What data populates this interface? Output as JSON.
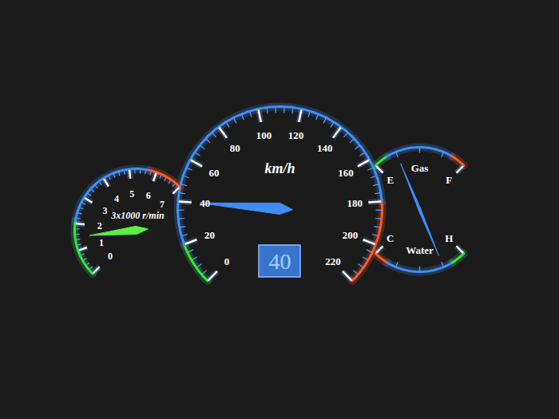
{
  "chart_data": [
    {
      "type": "gauge",
      "title": "km/h",
      "value": 40,
      "ylim": [
        0,
        220
      ],
      "yticks": [
        0,
        20,
        40,
        60,
        80,
        100,
        120,
        140,
        160,
        180,
        200,
        220
      ],
      "data_labels": true,
      "color": "#3f8ef5"
    },
    {
      "type": "gauge",
      "title": "3x1000 r/min",
      "value": 1.5,
      "ylim": [
        0,
        7
      ],
      "yticks": [
        0,
        1,
        2,
        3,
        4,
        5,
        6,
        7
      ],
      "color": "#5cf03e"
    },
    {
      "type": "gauge",
      "title": "Gas",
      "value": 0.5,
      "ylim": [
        0,
        2
      ],
      "yticks": [
        {
          "value": 0,
          "label": "E"
        },
        {
          "value": 2,
          "label": "F"
        }
      ],
      "color": "#3f8ef5"
    },
    {
      "type": "gauge",
      "title": "Water",
      "value": 1.5,
      "ylim": [
        0,
        2
      ],
      "yticks": [
        {
          "value": 0,
          "label": "C"
        },
        {
          "value": 2,
          "label": "H"
        }
      ],
      "color": "#3f8ef5"
    }
  ]
}
